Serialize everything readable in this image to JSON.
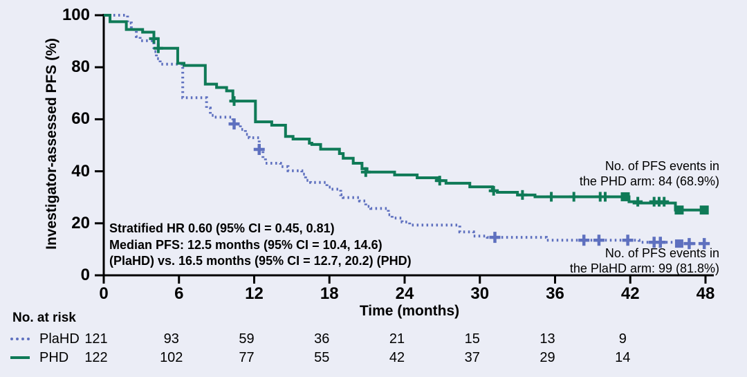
{
  "colors": {
    "background": "#ebedf6",
    "axis": "#000000",
    "text": "#000000",
    "plahd": "#5e70bf",
    "phd": "#0f7a57"
  },
  "chart_data": {
    "type": "line",
    "subtype": "kaplan-meier-step",
    "title": "",
    "xlabel": "Time (months)",
    "ylabel": "Investigator-assessed PFS (%)",
    "xlim": [
      0,
      48
    ],
    "ylim": [
      0,
      100
    ],
    "x_ticks": [
      0,
      6,
      12,
      18,
      24,
      30,
      36,
      42,
      48
    ],
    "y_ticks": [
      0,
      20,
      40,
      60,
      80,
      100
    ],
    "grid": false,
    "series": [
      {
        "name": "PlaHD",
        "color": "#5e70bf",
        "style": "dotted",
        "steps": [
          [
            0,
            100
          ],
          [
            1.9,
            97
          ],
          [
            2.2,
            94.5
          ],
          [
            2.6,
            91.8
          ],
          [
            2.9,
            90.2
          ],
          [
            4.0,
            86
          ],
          [
            4.2,
            83.3
          ],
          [
            4.5,
            81.2
          ],
          [
            6.3,
            68.3
          ],
          [
            8.2,
            64.3
          ],
          [
            8.5,
            61.5
          ],
          [
            8.8,
            60.8
          ],
          [
            10.3,
            58.2
          ],
          [
            10.9,
            56.1
          ],
          [
            11.3,
            54.2
          ],
          [
            11.6,
            52.9
          ],
          [
            12.4,
            48.4
          ],
          [
            12.7,
            45
          ],
          [
            12.9,
            43.1
          ],
          [
            14.1,
            41.8
          ],
          [
            14.7,
            40.2
          ],
          [
            15.8,
            38.9
          ],
          [
            16.1,
            36.5
          ],
          [
            16.5,
            35.7
          ],
          [
            17.8,
            33.9
          ],
          [
            18.1,
            33.1
          ],
          [
            18.9,
            31
          ],
          [
            19.1,
            29.9
          ],
          [
            20.4,
            28.6
          ],
          [
            20.9,
            26.5
          ],
          [
            21.3,
            25.7
          ],
          [
            22.7,
            23.3
          ],
          [
            23.0,
            22
          ],
          [
            23.8,
            20.5
          ],
          [
            24.4,
            19.3
          ],
          [
            28.4,
            16.7
          ],
          [
            29.5,
            15.1
          ],
          [
            30.6,
            14.6
          ],
          [
            35.3,
            13.5
          ],
          [
            42.7,
            12.7
          ],
          [
            45.9,
            12.2
          ]
        ],
        "censors_plus": [
          [
            10.4,
            58.2
          ],
          [
            12.4,
            48.4
          ],
          [
            31.2,
            14.6
          ],
          [
            38.3,
            13.5
          ],
          [
            39.5,
            13.5
          ],
          [
            41.8,
            13.5
          ],
          [
            43.9,
            12.7
          ],
          [
            44.4,
            12.7
          ],
          [
            46.7,
            12.2
          ],
          [
            47.9,
            12.2
          ]
        ],
        "censors_square": [
          [
            45.9,
            12.2
          ]
        ]
      },
      {
        "name": "PHD",
        "color": "#0f7a57",
        "style": "solid",
        "steps": [
          [
            0,
            100
          ],
          [
            0.5,
            97.5
          ],
          [
            1.8,
            94.5
          ],
          [
            3.1,
            93.5
          ],
          [
            4.0,
            91
          ],
          [
            4.35,
            87.3
          ],
          [
            5.9,
            81.5
          ],
          [
            6.4,
            80.7
          ],
          [
            8.1,
            73.5
          ],
          [
            9.0,
            72.2
          ],
          [
            9.8,
            70.9
          ],
          [
            10.3,
            67
          ],
          [
            12.1,
            59
          ],
          [
            13.4,
            57.7
          ],
          [
            14.5,
            53.4
          ],
          [
            15.1,
            52.4
          ],
          [
            16.4,
            50.8
          ],
          [
            16.6,
            50.3
          ],
          [
            17.3,
            48.5
          ],
          [
            18.8,
            46.8
          ],
          [
            19.1,
            45
          ],
          [
            19.9,
            43.1
          ],
          [
            20.6,
            41
          ],
          [
            21.0,
            39.7
          ],
          [
            23.2,
            38.6
          ],
          [
            25.0,
            37.5
          ],
          [
            26.6,
            36.4
          ],
          [
            27.3,
            35.4
          ],
          [
            29.2,
            34.0
          ],
          [
            31.0,
            32.5
          ],
          [
            31.4,
            31.9
          ],
          [
            33.0,
            30.9
          ],
          [
            34.4,
            30.2
          ],
          [
            41.9,
            28.3
          ],
          [
            42.3,
            27.8
          ],
          [
            45.6,
            25.1
          ]
        ],
        "censors_plus": [
          [
            4.0,
            91
          ],
          [
            4.35,
            87.3
          ],
          [
            10.4,
            67
          ],
          [
            20.9,
            39.7
          ],
          [
            26.8,
            36.4
          ],
          [
            31.1,
            32.5
          ],
          [
            33.4,
            30.9
          ],
          [
            35.7,
            30.2
          ],
          [
            37.5,
            30.2
          ],
          [
            39.6,
            30.2
          ],
          [
            40.0,
            30.2
          ],
          [
            42.6,
            28.3
          ],
          [
            43.9,
            28.3
          ],
          [
            44.3,
            28.3
          ],
          [
            44.7,
            28.3
          ]
        ],
        "censors_square": [
          [
            41.6,
            30.2
          ],
          [
            45.9,
            25.1
          ],
          [
            47.9,
            25.1
          ]
        ]
      }
    ],
    "annotations": {
      "stats_lines": [
        "Stratified HR 0.60 (95% CI = 0.45, 0.81)",
        "Median PFS: 12.5 months (95% CI = 10.4, 14.6)",
        "(PlaHD) vs. 16.5 months (95% CI = 12.7, 20.2) (PHD)"
      ],
      "phd_events": [
        "No. of PFS events in",
        "the PHD arm: 84 (68.9%)"
      ],
      "plahd_events": [
        "No. of PFS events in",
        "the PlaHD arm: 99 (81.8%)"
      ]
    },
    "risk_table": {
      "title": "No. at risk",
      "times": [
        0,
        6,
        12,
        18,
        24,
        30,
        36,
        42
      ],
      "rows": [
        {
          "name": "PlaHD",
          "counts": [
            121,
            93,
            59,
            36,
            21,
            15,
            13,
            9
          ]
        },
        {
          "name": "PHD",
          "counts": [
            122,
            102,
            77,
            55,
            42,
            37,
            29,
            14
          ]
        }
      ]
    }
  }
}
